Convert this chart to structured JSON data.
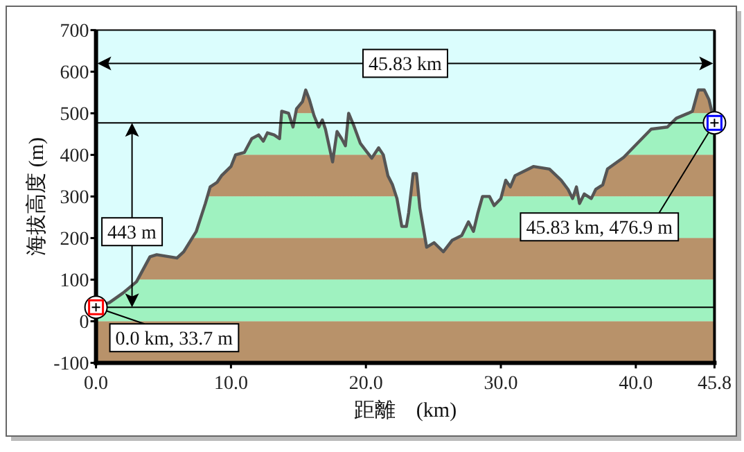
{
  "chart_data": {
    "type": "area",
    "xlabel": "距離　(km)",
    "ylabel": "海拔高度 (m)",
    "xlim": [
      0,
      45.83
    ],
    "ylim": [
      -100,
      700
    ],
    "xticks": [
      {
        "value": 0,
        "label": "0.0"
      },
      {
        "value": 10,
        "label": "10.0"
      },
      {
        "value": 20,
        "label": "20.0"
      },
      {
        "value": 30,
        "label": "30.0"
      },
      {
        "value": 40,
        "label": "40.0"
      },
      {
        "value": 45.83,
        "label": "45.8"
      }
    ],
    "yticks": [
      -100,
      0,
      100,
      200,
      300,
      400,
      500,
      600,
      700
    ],
    "series": [
      {
        "color": "#555555",
        "x": [
          0,
          1.0,
          2.0,
          3.0,
          4.0,
          4.5,
          6.0,
          6.5,
          7.43,
          8.1,
          8.46,
          8.97,
          9.3,
          10.0,
          10.34,
          11.0,
          11.54,
          12.05,
          12.4,
          12.7,
          13.2,
          13.6,
          13.76,
          14.27,
          14.6,
          14.86,
          15.3,
          15.54,
          15.81,
          16.16,
          16.5,
          16.77,
          17.0,
          17.53,
          17.86,
          18.2,
          18.48,
          18.72,
          19.07,
          19.58,
          20.1,
          20.43,
          20.94,
          21.29,
          21.63,
          21.97,
          22.3,
          22.66,
          23.0,
          23.17,
          23.5,
          23.75,
          24.0,
          24.5,
          25.05,
          25.74,
          26.4,
          27.1,
          27.6,
          27.97,
          28.3,
          28.64,
          29.16,
          29.5,
          30.0,
          30.36,
          30.7,
          31.05,
          32.41,
          33.6,
          34.47,
          34.98,
          35.32,
          35.6,
          35.83,
          36.18,
          36.7,
          37.03,
          37.55,
          37.9,
          39.1,
          41.14,
          42.34,
          43.0,
          43.88,
          44.2,
          44.63,
          45.07,
          45.42,
          45.83
        ],
        "values": [
          33.7,
          45,
          68,
          95,
          155,
          160,
          152,
          167,
          216,
          283,
          323,
          334,
          350,
          372,
          400,
          406,
          439,
          448,
          433,
          453,
          448,
          439,
          505,
          500,
          467,
          511,
          528,
          556,
          533,
          494,
          467,
          484,
          462,
          383,
          456,
          439,
          422,
          500,
          473,
          428,
          406,
          392,
          417,
          400,
          350,
          328,
          295,
          228,
          228,
          261,
          355,
          355,
          272,
          178,
          189,
          167,
          195,
          206,
          239,
          216,
          261,
          300,
          300,
          278,
          295,
          339,
          323,
          350,
          372,
          366,
          339,
          317,
          295,
          323,
          283,
          306,
          295,
          317,
          328,
          366,
          394,
          462,
          467,
          488,
          500,
          505,
          556,
          556,
          533,
          476.9
        ]
      }
    ],
    "bands": [
      {
        "axis": "y",
        "from": -100,
        "to": 0,
        "color": "#b8926a"
      },
      {
        "axis": "y",
        "from": 0,
        "to": 100,
        "color": "#9ff2c0"
      },
      {
        "axis": "y",
        "from": 100,
        "to": 200,
        "color": "#b8926a"
      },
      {
        "axis": "y",
        "from": 200,
        "to": 300,
        "color": "#9ff2c0"
      },
      {
        "axis": "y",
        "from": 300,
        "to": 400,
        "color": "#b8926a"
      },
      {
        "axis": "y",
        "from": 400,
        "to": 500,
        "color": "#9ff2c0"
      },
      {
        "axis": "y",
        "from": 500,
        "to": 600,
        "color": "#b8926a"
      }
    ],
    "ref_lines": [
      {
        "axis": "y",
        "value": 33.7,
        "color": "#000000"
      },
      {
        "axis": "y",
        "value": 476.9,
        "color": "#000000"
      }
    ],
    "annotations": [
      "45.83 km",
      "443 m",
      {
        "text": "0.0 km, 33.7 m",
        "x": 0,
        "y": 33.7
      },
      {
        "text": "45.83 km, 476.9 m",
        "x": 45.83,
        "y": 476.9
      }
    ],
    "data_labels": false
  }
}
